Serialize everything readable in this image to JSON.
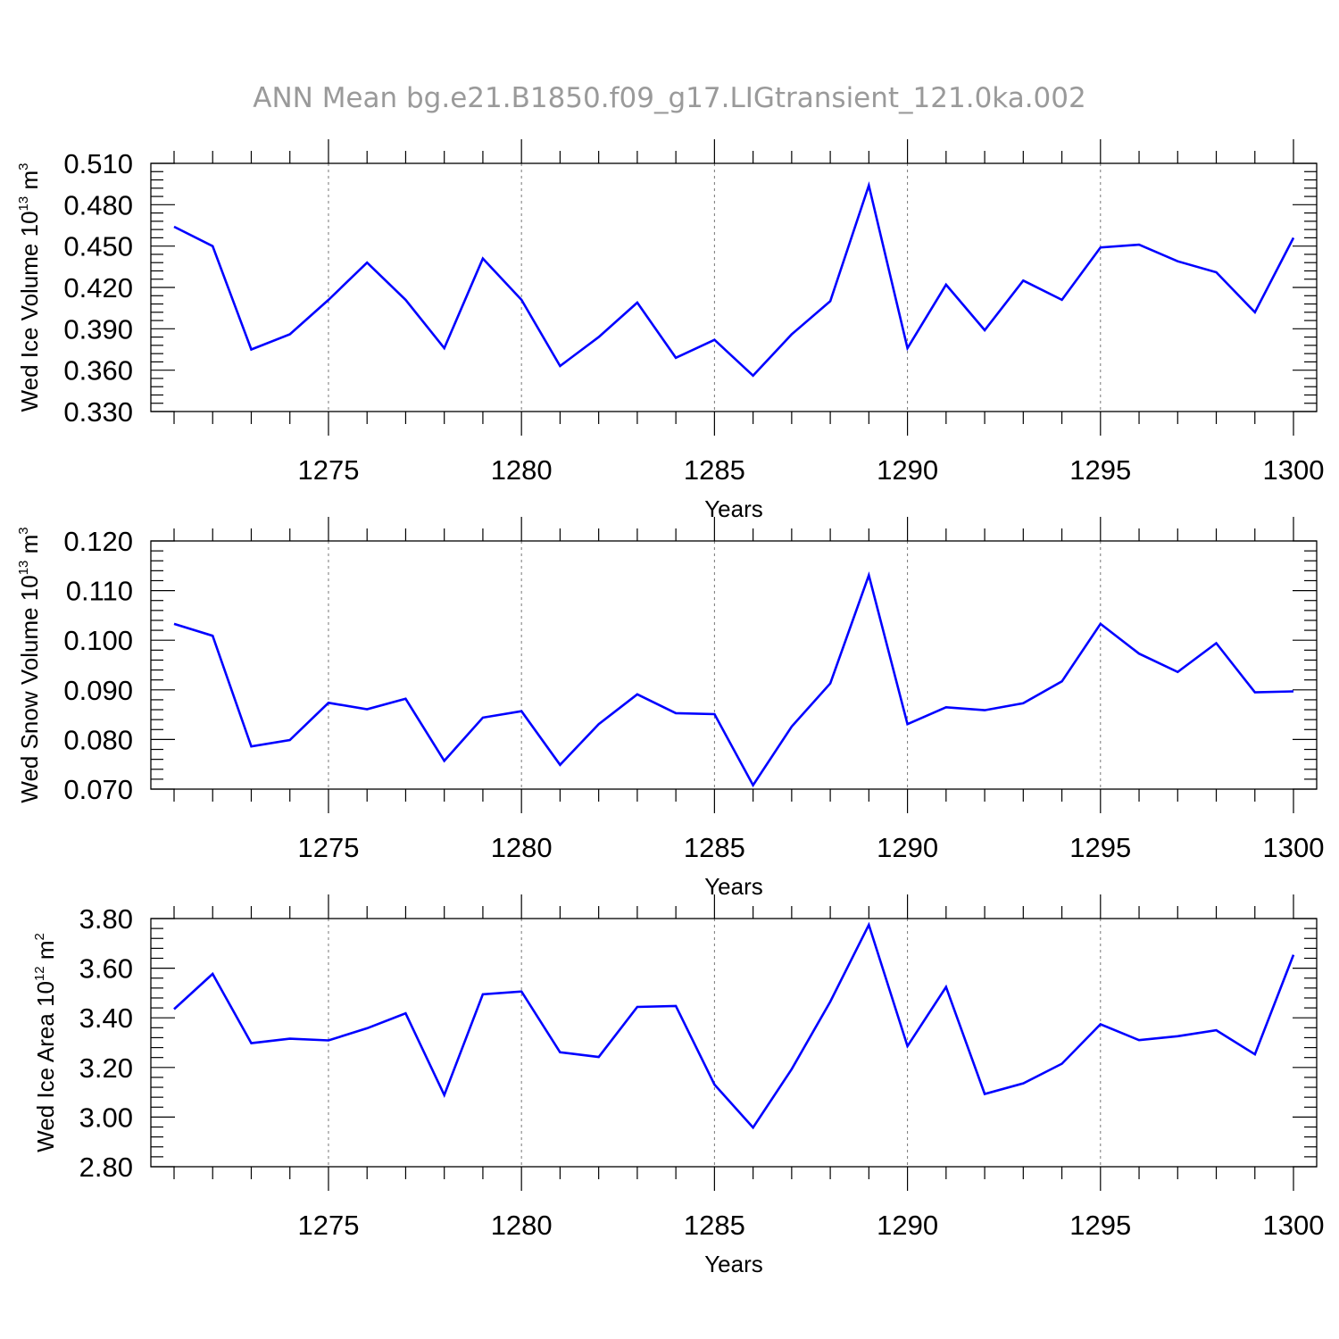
{
  "title": "ANN  Mean  bg.e21.B1850.f09_g17.LIGtransient_121.0ka.002",
  "colors": {
    "series": "#0000ff",
    "grid": "#777777"
  },
  "chart_data": [
    {
      "type": "line",
      "ylabel": {
        "text": "Wed Ice Volume 10",
        "sup": "13",
        "unit": " m",
        "unit_sup": "3"
      },
      "xlabel": "Years",
      "xlim": [
        1271,
        1300
      ],
      "ylim": [
        0.33,
        0.51
      ],
      "yticks": [
        "0.330",
        "0.360",
        "0.390",
        "0.420",
        "0.450",
        "0.480",
        "0.510"
      ],
      "ytick_values": [
        0.33,
        0.36,
        0.39,
        0.42,
        0.45,
        0.48,
        0.51
      ],
      "xticks": [
        "1275",
        "1280",
        "1285",
        "1290",
        "1295",
        "1300"
      ],
      "xtick_values": [
        1275,
        1280,
        1285,
        1290,
        1295,
        1300
      ],
      "grid": "vertical dashed at major x ticks",
      "x": [
        1271,
        1272,
        1273,
        1274,
        1275,
        1276,
        1277,
        1278,
        1279,
        1280,
        1281,
        1282,
        1283,
        1284,
        1285,
        1286,
        1287,
        1288,
        1289,
        1290,
        1291,
        1292,
        1293,
        1294,
        1295,
        1296,
        1297,
        1298,
        1299,
        1300
      ],
      "series": [
        {
          "values": [
            0.464,
            0.45,
            0.375,
            0.386,
            0.411,
            0.438,
            0.411,
            0.376,
            0.441,
            0.411,
            0.363,
            0.384,
            0.409,
            0.369,
            0.382,
            0.356,
            0.386,
            0.41,
            0.494,
            0.376,
            0.422,
            0.389,
            0.425,
            0.411,
            0.449,
            0.451,
            0.439,
            0.431,
            0.402,
            0.456
          ]
        }
      ]
    },
    {
      "type": "line",
      "ylabel": {
        "text": "Wed Snow Volume 10",
        "sup": "13",
        "unit": " m",
        "unit_sup": "3"
      },
      "xlabel": "Years",
      "xlim": [
        1271,
        1300
      ],
      "ylim": [
        0.07,
        0.12
      ],
      "yticks": [
        "0.070",
        "0.080",
        "0.090",
        "0.100",
        "0.110",
        "0.120"
      ],
      "ytick_values": [
        0.07,
        0.08,
        0.09,
        0.1,
        0.11,
        0.12
      ],
      "xticks": [
        "1275",
        "1280",
        "1285",
        "1290",
        "1295",
        "1300"
      ],
      "xtick_values": [
        1275,
        1280,
        1285,
        1290,
        1295,
        1300
      ],
      "grid": "vertical dashed at major x ticks",
      "x": [
        1271,
        1272,
        1273,
        1274,
        1275,
        1276,
        1277,
        1278,
        1279,
        1280,
        1281,
        1282,
        1283,
        1284,
        1285,
        1286,
        1287,
        1288,
        1289,
        1290,
        1291,
        1292,
        1293,
        1294,
        1295,
        1296,
        1297,
        1298,
        1299,
        1300
      ],
      "series": [
        {
          "values": [
            0.1033,
            0.1009,
            0.0786,
            0.0799,
            0.0874,
            0.0861,
            0.0882,
            0.0757,
            0.0844,
            0.0857,
            0.0749,
            0.0831,
            0.0891,
            0.0853,
            0.0851,
            0.0708,
            0.0826,
            0.0913,
            0.1131,
            0.0831,
            0.0865,
            0.0859,
            0.0873,
            0.0917,
            0.1033,
            0.0973,
            0.0936,
            0.0994,
            0.0895,
            0.0897
          ]
        }
      ]
    },
    {
      "type": "line",
      "ylabel": {
        "text": "Wed Ice Area 10",
        "sup": "12",
        "unit": " m",
        "unit_sup": "2"
      },
      "xlabel": "Years",
      "xlim": [
        1271,
        1300
      ],
      "ylim": [
        2.8,
        3.8
      ],
      "yticks": [
        "2.80",
        "3.00",
        "3.20",
        "3.40",
        "3.60",
        "3.80"
      ],
      "ytick_values": [
        2.8,
        3.0,
        3.2,
        3.4,
        3.6,
        3.8
      ],
      "xticks": [
        "1275",
        "1280",
        "1285",
        "1290",
        "1295",
        "1300"
      ],
      "xtick_values": [
        1275,
        1280,
        1285,
        1290,
        1295,
        1300
      ],
      "grid": "vertical dashed at major x ticks",
      "x": [
        1271,
        1272,
        1273,
        1274,
        1275,
        1276,
        1277,
        1278,
        1279,
        1280,
        1281,
        1282,
        1283,
        1284,
        1285,
        1286,
        1287,
        1288,
        1289,
        1290,
        1291,
        1292,
        1293,
        1294,
        1295,
        1296,
        1297,
        1298,
        1299,
        1300
      ],
      "series": [
        {
          "values": [
            3.435,
            3.577,
            3.298,
            3.316,
            3.309,
            3.358,
            3.418,
            3.089,
            3.495,
            3.506,
            3.261,
            3.242,
            3.444,
            3.448,
            3.131,
            2.958,
            3.193,
            3.465,
            3.775,
            3.286,
            3.524,
            3.093,
            3.136,
            3.215,
            3.374,
            3.31,
            3.326,
            3.35,
            3.253,
            3.654
          ]
        }
      ]
    }
  ]
}
